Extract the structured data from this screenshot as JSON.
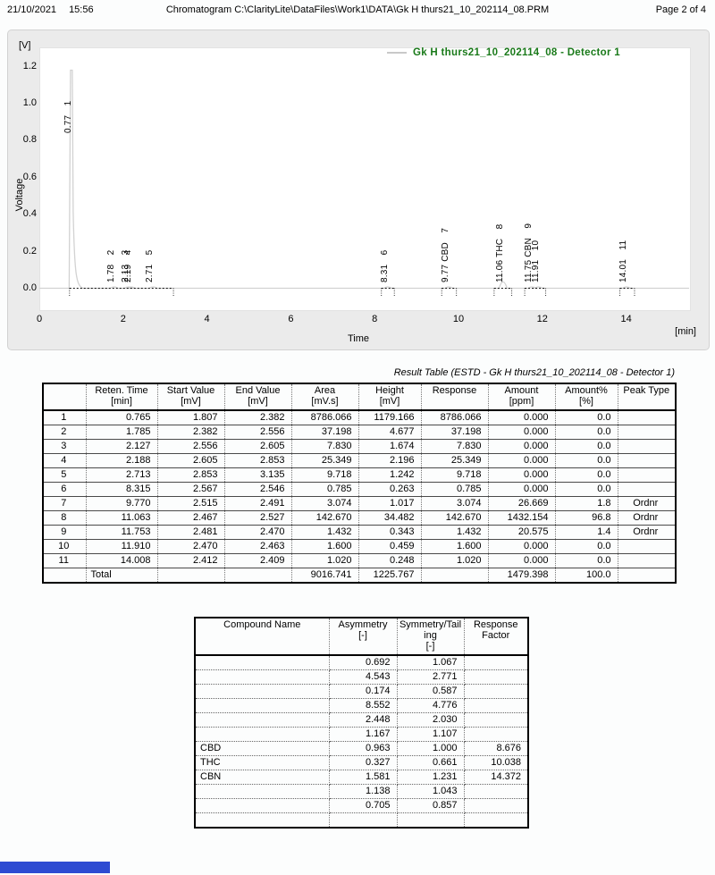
{
  "page": {
    "header": {
      "date": "21/10/2021",
      "time": "15:56",
      "title": "Chromatogram C:\\ClarityLite\\DataFiles\\Work1\\DATA\\Gk H thurs21_10_202114_08.PRM",
      "page_label": "Page 2 of 4"
    },
    "footer": {
      "bar_color": "#2e4bd2"
    }
  },
  "chart_data": {
    "type": "line",
    "title": "",
    "legend": "Gk H thurs21_10_202114_08 - Detector 1",
    "legend_color": "#1a7a1a",
    "trace_color": "#d2d2d2",
    "ylabel": "Voltage",
    "y_axis_unit": "[V]",
    "xlabel": "Time",
    "x_axis_unit": "[min]",
    "xlim": [
      0,
      15.5
    ],
    "ylim": [
      0,
      1.3
    ],
    "grid": "off",
    "legend_position": "top-right",
    "y_ticks": [
      "1.2",
      "1.0",
      "0.8",
      "0.6",
      "0.4",
      "0.2",
      "0.0"
    ],
    "x_ticks": [
      "0",
      "2",
      "4",
      "6",
      "8",
      "10",
      "12",
      "14"
    ],
    "peaks": [
      {
        "num": "1",
        "rt": 0.765,
        "rt_label": "0.77",
        "name": "",
        "height_mv": 1179.166
      },
      {
        "num": "2",
        "rt": 1.785,
        "rt_label": "1.78",
        "name": "",
        "height_mv": 4.677
      },
      {
        "num": "3",
        "rt": 2.127,
        "rt_label": "2.13",
        "name": "",
        "height_mv": 1.674
      },
      {
        "num": "4",
        "rt": 2.188,
        "rt_label": "2.19",
        "name": "",
        "height_mv": 2.196
      },
      {
        "num": "5",
        "rt": 2.713,
        "rt_label": "2.71",
        "name": "",
        "height_mv": 1.242
      },
      {
        "num": "6",
        "rt": 8.315,
        "rt_label": "8.31",
        "name": "",
        "height_mv": 0.263
      },
      {
        "num": "7",
        "rt": 9.77,
        "rt_label": "9.77",
        "name": "CBD",
        "height_mv": 1.017
      },
      {
        "num": "8",
        "rt": 11.063,
        "rt_label": "11.06",
        "name": "THC",
        "height_mv": 34.482
      },
      {
        "num": "9",
        "rt": 11.753,
        "rt_label": "11.75",
        "name": "CBN",
        "height_mv": 0.343
      },
      {
        "num": "10",
        "rt": 11.91,
        "rt_label": "11.91",
        "name": "",
        "height_mv": 0.459
      },
      {
        "num": "11",
        "rt": 14.008,
        "rt_label": "14.01",
        "name": "",
        "height_mv": 0.248
      }
    ],
    "baseline_segments_min": [
      [
        0.72,
        3.2
      ],
      [
        8.16,
        8.47
      ],
      [
        9.6,
        9.95
      ],
      [
        10.85,
        11.27
      ],
      [
        11.58,
        12.08
      ],
      [
        13.85,
        14.2
      ]
    ]
  },
  "result_table": {
    "title": "Result Table (ESTD - Gk H thurs21_10_202114_08 - Detector 1)",
    "columns": [
      {
        "name": "",
        "unit": ""
      },
      {
        "name": "Reten. Time",
        "unit": "[min]"
      },
      {
        "name": "Start Value",
        "unit": "[mV]"
      },
      {
        "name": "End Value",
        "unit": "[mV]"
      },
      {
        "name": "Area",
        "unit": "[mV.s]"
      },
      {
        "name": "Height",
        "unit": "[mV]"
      },
      {
        "name": "Response",
        "unit": ""
      },
      {
        "name": "Amount",
        "unit": "[ppm]"
      },
      {
        "name": "Amount%",
        "unit": "[%]"
      },
      {
        "name": "Peak Type",
        "unit": ""
      }
    ],
    "rows": [
      [
        "1",
        "0.765",
        "1.807",
        "2.382",
        "8786.066",
        "1179.166",
        "8786.066",
        "0.000",
        "0.0",
        ""
      ],
      [
        "2",
        "1.785",
        "2.382",
        "2.556",
        "37.198",
        "4.677",
        "37.198",
        "0.000",
        "0.0",
        ""
      ],
      [
        "3",
        "2.127",
        "2.556",
        "2.605",
        "7.830",
        "1.674",
        "7.830",
        "0.000",
        "0.0",
        ""
      ],
      [
        "4",
        "2.188",
        "2.605",
        "2.853",
        "25.349",
        "2.196",
        "25.349",
        "0.000",
        "0.0",
        ""
      ],
      [
        "5",
        "2.713",
        "2.853",
        "3.135",
        "9.718",
        "1.242",
        "9.718",
        "0.000",
        "0.0",
        ""
      ],
      [
        "6",
        "8.315",
        "2.567",
        "2.546",
        "0.785",
        "0.263",
        "0.785",
        "0.000",
        "0.0",
        ""
      ],
      [
        "7",
        "9.770",
        "2.515",
        "2.491",
        "3.074",
        "1.017",
        "3.074",
        "26.669",
        "1.8",
        "Ordnr"
      ],
      [
        "8",
        "11.063",
        "2.467",
        "2.527",
        "142.670",
        "34.482",
        "142.670",
        "1432.154",
        "96.8",
        "Ordnr"
      ],
      [
        "9",
        "11.753",
        "2.481",
        "2.470",
        "1.432",
        "0.343",
        "1.432",
        "20.575",
        "1.4",
        "Ordnr"
      ],
      [
        "10",
        "11.910",
        "2.470",
        "2.463",
        "1.600",
        "0.459",
        "1.600",
        "0.000",
        "0.0",
        ""
      ],
      [
        "11",
        "14.008",
        "2.412",
        "2.409",
        "1.020",
        "0.248",
        "1.020",
        "0.000",
        "0.0",
        ""
      ]
    ],
    "total_row": [
      "",
      "Total",
      "",
      "",
      "9016.741",
      "1225.767",
      "",
      "1479.398",
      "100.0",
      ""
    ]
  },
  "compound_table": {
    "columns": [
      {
        "name": "Compound Name",
        "unit": ""
      },
      {
        "name": "Asymmetry",
        "unit": "[-]"
      },
      {
        "name": "Symmetry/Tailing",
        "unit": "[-]"
      },
      {
        "name": "Response Factor",
        "unit": ""
      }
    ],
    "rows": [
      [
        "",
        "0.692",
        "1.067",
        ""
      ],
      [
        "",
        "4.543",
        "2.771",
        ""
      ],
      [
        "",
        "0.174",
        "0.587",
        ""
      ],
      [
        "",
        "8.552",
        "4.776",
        ""
      ],
      [
        "",
        "2.448",
        "2.030",
        ""
      ],
      [
        "",
        "1.167",
        "1.107",
        ""
      ],
      [
        "CBD",
        "0.963",
        "1.000",
        "8.676"
      ],
      [
        "THC",
        "0.327",
        "0.661",
        "10.038"
      ],
      [
        "CBN",
        "1.581",
        "1.231",
        "14.372"
      ],
      [
        "",
        "1.138",
        "1.043",
        ""
      ],
      [
        "",
        "0.705",
        "0.857",
        ""
      ],
      [
        "",
        "",
        "",
        ""
      ]
    ]
  }
}
